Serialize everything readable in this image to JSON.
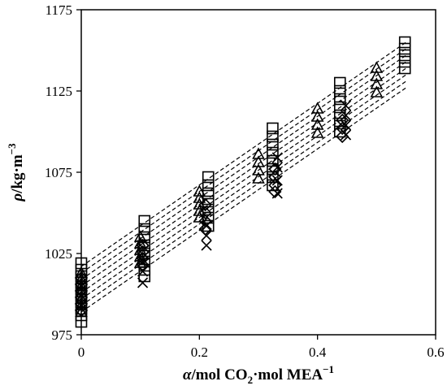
{
  "chart_data": {
    "type": "scatter",
    "title": "",
    "xlabel": {
      "italic": "α",
      "a": "/mol CO",
      "sub": "2",
      "b": "·mol MEA",
      "sup": "−1"
    },
    "ylabel": {
      "italic": "ρ",
      "a": "/kg·m",
      "sup": "−3"
    },
    "xlim": [
      0,
      0.6
    ],
    "ylim": [
      975,
      1175
    ],
    "xticks": [
      "0",
      "0.2",
      "0.4",
      "0.6"
    ],
    "yticks": [
      "975",
      "1025",
      "1075",
      "1125",
      "1175"
    ],
    "grid": false,
    "legend": "none",
    "series": [
      {
        "marker": "square",
        "points": [
          [
            0,
            1019
          ],
          [
            0,
            1015
          ],
          [
            0,
            1011
          ],
          [
            0,
            1007
          ],
          [
            0,
            1003
          ],
          [
            0,
            999
          ],
          [
            0,
            995
          ],
          [
            0,
            991
          ],
          [
            0,
            987
          ],
          [
            0,
            983
          ],
          [
            0.107,
            1045
          ],
          [
            0.107,
            1040
          ],
          [
            0.107,
            1035
          ],
          [
            0.107,
            1030
          ],
          [
            0.107,
            1025
          ],
          [
            0.107,
            1020
          ],
          [
            0.107,
            1015
          ],
          [
            0.107,
            1011
          ],
          [
            0.215,
            1072
          ],
          [
            0.215,
            1067
          ],
          [
            0.215,
            1062
          ],
          [
            0.215,
            1057
          ],
          [
            0.215,
            1052
          ],
          [
            0.215,
            1047
          ],
          [
            0.215,
            1042
          ],
          [
            0.324,
            1102
          ],
          [
            0.324,
            1097
          ],
          [
            0.324,
            1092
          ],
          [
            0.324,
            1087
          ],
          [
            0.324,
            1082
          ],
          [
            0.324,
            1077
          ],
          [
            0.324,
            1072
          ],
          [
            0.324,
            1067
          ],
          [
            0.438,
            1130
          ],
          [
            0.438,
            1125
          ],
          [
            0.438,
            1120
          ],
          [
            0.438,
            1115
          ],
          [
            0.438,
            1110
          ],
          [
            0.438,
            1105
          ],
          [
            0.438,
            1100
          ],
          [
            0.548,
            1155
          ],
          [
            0.548,
            1151
          ],
          [
            0.548,
            1147
          ],
          [
            0.548,
            1143
          ],
          [
            0.548,
            1139
          ]
        ]
      },
      {
        "marker": "triangle",
        "points": [
          [
            0,
            1013
          ],
          [
            0,
            1009
          ],
          [
            0,
            1005
          ],
          [
            0,
            1001
          ],
          [
            0,
            997
          ],
          [
            0,
            993
          ],
          [
            0,
            989
          ],
          [
            0.1,
            1035
          ],
          [
            0.1,
            1031
          ],
          [
            0.1,
            1027
          ],
          [
            0.1,
            1023
          ],
          [
            0.1,
            1019
          ],
          [
            0.2,
            1063
          ],
          [
            0.2,
            1059
          ],
          [
            0.2,
            1055
          ],
          [
            0.2,
            1051
          ],
          [
            0.2,
            1047
          ],
          [
            0.3,
            1086
          ],
          [
            0.3,
            1081
          ],
          [
            0.3,
            1076
          ],
          [
            0.3,
            1071
          ],
          [
            0.4,
            1114
          ],
          [
            0.4,
            1109
          ],
          [
            0.4,
            1104
          ],
          [
            0.4,
            1099
          ],
          [
            0.5,
            1139
          ],
          [
            0.5,
            1134
          ],
          [
            0.5,
            1129
          ],
          [
            0.5,
            1124
          ]
        ]
      },
      {
        "marker": "diamond",
        "points": [
          [
            0,
            1010
          ],
          [
            0,
            1006
          ],
          [
            0,
            1002
          ],
          [
            0,
            998
          ],
          [
            0,
            994
          ],
          [
            0,
            990
          ],
          [
            0.104,
            1030
          ],
          [
            0.104,
            1026
          ],
          [
            0.104,
            1022
          ],
          [
            0.104,
            1018
          ],
          [
            0.21,
            1055
          ],
          [
            0.21,
            1050
          ],
          [
            0.21,
            1045
          ],
          [
            0.21,
            1040
          ],
          [
            0.328,
            1077
          ],
          [
            0.328,
            1072
          ],
          [
            0.328,
            1067
          ],
          [
            0.328,
            1063
          ],
          [
            0.442,
            1107
          ],
          [
            0.442,
            1102
          ],
          [
            0.442,
            1097
          ]
        ]
      },
      {
        "marker": "cross",
        "points": [
          [
            0,
            1005
          ],
          [
            0,
            999
          ],
          [
            0,
            993
          ],
          [
            0.104,
            1020
          ],
          [
            0.104,
            1014
          ],
          [
            0.104,
            1007
          ],
          [
            0.212,
            1042
          ],
          [
            0.212,
            1036
          ],
          [
            0.212,
            1030
          ],
          [
            0.332,
            1084
          ],
          [
            0.332,
            1078
          ],
          [
            0.332,
            1070
          ],
          [
            0.332,
            1062
          ],
          [
            0.448,
            1116
          ],
          [
            0.448,
            1110
          ],
          [
            0.448,
            1104
          ],
          [
            0.448,
            1098
          ]
        ]
      }
    ],
    "fit_lines": [
      {
        "x": [
          0,
          0.55
        ],
        "y": [
          1017,
          1155
        ]
      },
      {
        "x": [
          0,
          0.55
        ],
        "y": [
          1013,
          1151
        ]
      },
      {
        "x": [
          0,
          0.55
        ],
        "y": [
          1009,
          1147
        ]
      },
      {
        "x": [
          0,
          0.55
        ],
        "y": [
          1005,
          1143
        ]
      },
      {
        "x": [
          0,
          0.55
        ],
        "y": [
          1001,
          1139
        ]
      },
      {
        "x": [
          0,
          0.55
        ],
        "y": [
          997,
          1135
        ]
      },
      {
        "x": [
          0,
          0.55
        ],
        "y": [
          993,
          1131
        ]
      },
      {
        "x": [
          0,
          0.55
        ],
        "y": [
          989,
          1127
        ]
      }
    ]
  }
}
